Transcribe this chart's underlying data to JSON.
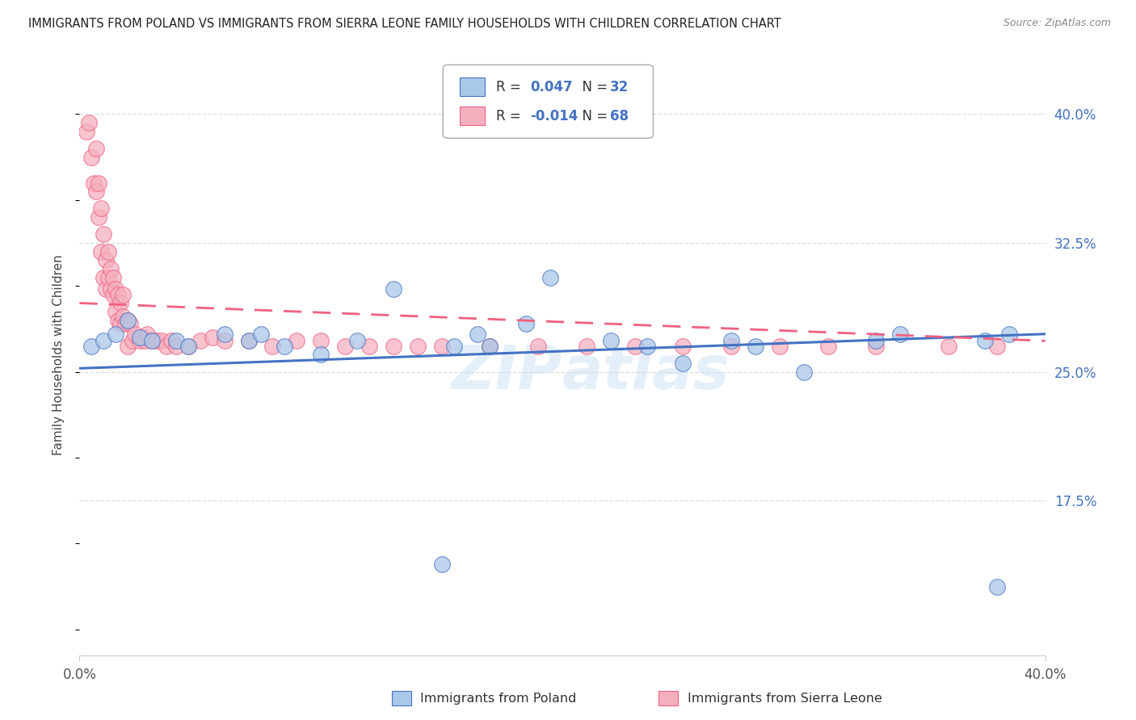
{
  "title": "IMMIGRANTS FROM POLAND VS IMMIGRANTS FROM SIERRA LEONE FAMILY HOUSEHOLDS WITH CHILDREN CORRELATION CHART",
  "source": "Source: ZipAtlas.com",
  "ylabel": "Family Households with Children",
  "legend_label1": "Immigrants from Poland",
  "legend_label2": "Immigrants from Sierra Leone",
  "r1": 0.047,
  "n1": 32,
  "r2": -0.014,
  "n2": 68,
  "xlim": [
    0.0,
    0.4
  ],
  "ylim": [
    0.085,
    0.435
  ],
  "yticks": [
    0.175,
    0.25,
    0.325,
    0.4
  ],
  "ytick_labels": [
    "17.5%",
    "25.0%",
    "32.5%",
    "40.0%"
  ],
  "color_blue": "#aac8e8",
  "color_pink": "#f5b0c0",
  "line_blue": "#4472c4",
  "line_pink": "#f06080",
  "grid_color": "#dddddd",
  "poland_x": [
    0.005,
    0.01,
    0.015,
    0.02,
    0.025,
    0.03,
    0.04,
    0.045,
    0.06,
    0.07,
    0.075,
    0.085,
    0.1,
    0.115,
    0.13,
    0.155,
    0.165,
    0.17,
    0.185,
    0.195,
    0.22,
    0.235,
    0.27,
    0.28,
    0.33,
    0.34,
    0.375,
    0.385,
    0.15,
    0.25,
    0.3,
    0.38
  ],
  "poland_y": [
    0.265,
    0.268,
    0.272,
    0.28,
    0.27,
    0.268,
    0.268,
    0.265,
    0.272,
    0.268,
    0.272,
    0.265,
    0.26,
    0.268,
    0.298,
    0.265,
    0.272,
    0.265,
    0.278,
    0.305,
    0.268,
    0.265,
    0.268,
    0.265,
    0.268,
    0.272,
    0.268,
    0.272,
    0.138,
    0.255,
    0.25,
    0.125
  ],
  "sl_x": [
    0.003,
    0.004,
    0.005,
    0.006,
    0.007,
    0.007,
    0.008,
    0.008,
    0.009,
    0.009,
    0.01,
    0.01,
    0.011,
    0.011,
    0.012,
    0.012,
    0.013,
    0.013,
    0.014,
    0.014,
    0.015,
    0.015,
    0.016,
    0.016,
    0.017,
    0.017,
    0.018,
    0.018,
    0.019,
    0.02,
    0.02,
    0.021,
    0.022,
    0.023,
    0.025,
    0.026,
    0.027,
    0.028,
    0.03,
    0.032,
    0.034,
    0.036,
    0.038,
    0.04,
    0.045,
    0.05,
    0.055,
    0.06,
    0.07,
    0.08,
    0.09,
    0.1,
    0.11,
    0.12,
    0.13,
    0.14,
    0.15,
    0.17,
    0.19,
    0.21,
    0.23,
    0.25,
    0.27,
    0.29,
    0.31,
    0.33,
    0.36,
    0.38
  ],
  "sl_y": [
    0.39,
    0.395,
    0.375,
    0.36,
    0.38,
    0.355,
    0.34,
    0.36,
    0.32,
    0.345,
    0.305,
    0.33,
    0.298,
    0.315,
    0.305,
    0.32,
    0.298,
    0.31,
    0.295,
    0.305,
    0.285,
    0.298,
    0.28,
    0.295,
    0.278,
    0.29,
    0.282,
    0.295,
    0.278,
    0.28,
    0.265,
    0.278,
    0.268,
    0.272,
    0.268,
    0.27,
    0.268,
    0.272,
    0.268,
    0.268,
    0.268,
    0.265,
    0.268,
    0.265,
    0.265,
    0.268,
    0.27,
    0.268,
    0.268,
    0.265,
    0.268,
    0.268,
    0.265,
    0.265,
    0.265,
    0.265,
    0.265,
    0.265,
    0.265,
    0.265,
    0.265,
    0.265,
    0.265,
    0.265,
    0.265,
    0.265,
    0.265,
    0.265
  ],
  "blue_line_start_y": 0.252,
  "blue_line_end_y": 0.272,
  "pink_line_start_y": 0.29,
  "pink_line_end_y": 0.268
}
